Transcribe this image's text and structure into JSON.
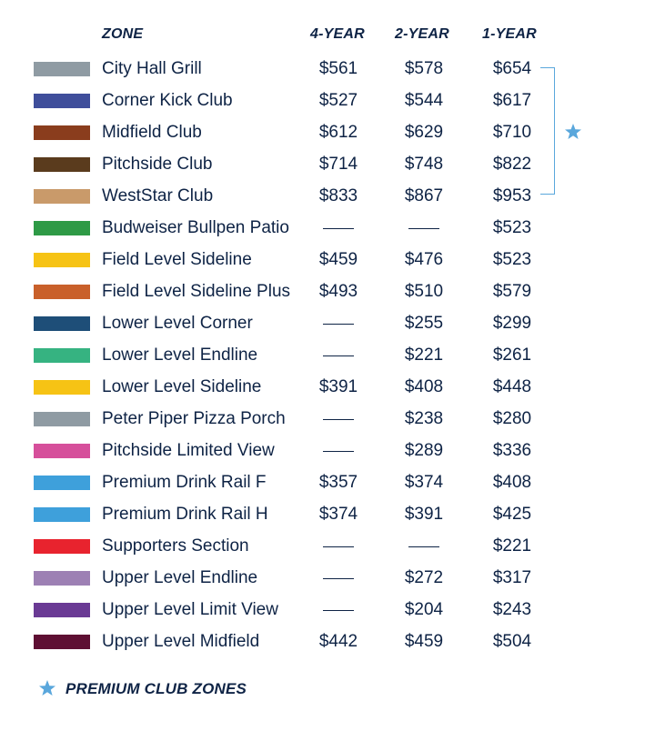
{
  "header": {
    "zone": "ZONE",
    "four_year": "4-YEAR",
    "two_year": "2-YEAR",
    "one_year": "1-YEAR"
  },
  "rows": [
    {
      "name": "City Hall Grill",
      "color": "#8f9ba3",
      "four_year": "$561",
      "two_year": "$578",
      "one_year": "$654"
    },
    {
      "name": "Corner Kick Club",
      "color": "#3f4e9b",
      "four_year": "$527",
      "two_year": "$544",
      "one_year": "$617"
    },
    {
      "name": "Midfield Club",
      "color": "#8a3d1d",
      "four_year": "$612",
      "two_year": "$629",
      "one_year": "$710"
    },
    {
      "name": "Pitchside Club",
      "color": "#5a3b1d",
      "four_year": "$714",
      "two_year": "$748",
      "one_year": "$822"
    },
    {
      "name": "WestStar Club",
      "color": "#c99a6a",
      "four_year": "$833",
      "two_year": "$867",
      "one_year": "$953"
    },
    {
      "name": "Budweiser Bullpen Patio",
      "color": "#2e9a46",
      "four_year": null,
      "two_year": null,
      "one_year": "$523"
    },
    {
      "name": "Field Level Sideline",
      "color": "#f6c315",
      "four_year": "$459",
      "two_year": "$476",
      "one_year": "$523"
    },
    {
      "name": "Field Level Sideline Plus",
      "color": "#c9602a",
      "four_year": "$493",
      "two_year": "$510",
      "one_year": "$579"
    },
    {
      "name": "Lower Level Corner",
      "color": "#1e4e78",
      "four_year": null,
      "two_year": "$255",
      "one_year": "$299"
    },
    {
      "name": "Lower Level Endline",
      "color": "#36b381",
      "four_year": null,
      "two_year": "$221",
      "one_year": "$261"
    },
    {
      "name": "Lower Level Sideline",
      "color": "#f6c315",
      "four_year": "$391",
      "two_year": "$408",
      "one_year": "$448"
    },
    {
      "name": "Peter Piper Pizza Porch",
      "color": "#8f9ba3",
      "four_year": null,
      "two_year": "$238",
      "one_year": "$280"
    },
    {
      "name": "Pitchside Limited View",
      "color": "#d64f9b",
      "four_year": null,
      "two_year": "$289",
      "one_year": "$336"
    },
    {
      "name": "Premium Drink Rail F",
      "color": "#3ea0db",
      "four_year": "$357",
      "two_year": "$374",
      "one_year": "$408"
    },
    {
      "name": "Premium Drink Rail H",
      "color": "#3ea0db",
      "four_year": "$374",
      "two_year": "$391",
      "one_year": "$425"
    },
    {
      "name": "Supporters Section",
      "color": "#e8232e",
      "four_year": null,
      "two_year": null,
      "one_year": "$221"
    },
    {
      "name": "Upper Level Endline",
      "color": "#9d80b4",
      "four_year": null,
      "two_year": "$272",
      "one_year": "$317"
    },
    {
      "name": "Upper Level Limit View",
      "color": "#6a3a94",
      "four_year": null,
      "two_year": "$204",
      "one_year": "$243"
    },
    {
      "name": "Upper Level Midfield",
      "color": "#5e0f33",
      "four_year": "$442",
      "two_year": "$459",
      "one_year": "$504"
    }
  ],
  "premium_bracket": {
    "icon": "star-icon",
    "color": "#5aa7dc"
  },
  "footer": {
    "label": "PREMIUM CLUB ZONES",
    "icon": "star-icon",
    "star_color": "#5aa7dc"
  },
  "colors": {
    "text": "#0e2345",
    "accent": "#5aa7dc",
    "background": "#ffffff"
  }
}
